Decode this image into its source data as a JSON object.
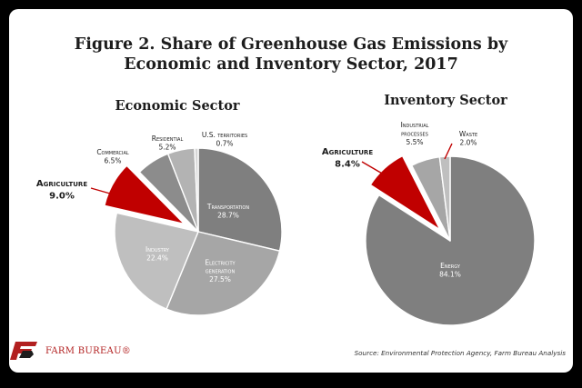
{
  "figure_title_line1": "Figure 2. Share of Greenhouse Gas Emissions by",
  "figure_title_line2": "Economic and Inventory Sector, 2017",
  "logo_text": "FARM BUREAU®",
  "source": "Source: Environmental Protection Agency, Farm Bureau Analysis",
  "colors": {
    "highlight": "#c00000",
    "background": "#ffffff",
    "text": "#1d1d1d"
  },
  "chart_data": [
    {
      "type": "pie",
      "title": "Economic Sector",
      "labels": [
        "Transportation",
        "Electricity generation",
        "Industry",
        "Agriculture",
        "Commercial",
        "Residential",
        "U.S. territories"
      ],
      "display_labels": [
        "Transportation",
        "Electricity generation",
        "Industry",
        "Agriculture",
        "Commercial",
        "Residential",
        "U.S. territories"
      ],
      "values": [
        28.7,
        27.5,
        22.4,
        9.0,
        6.5,
        5.2,
        0.7
      ],
      "value_labels": [
        "28.7%",
        "27.5%",
        "22.4%",
        "9.0%",
        "6.5%",
        "5.2%",
        "0.7%"
      ],
      "colors": [
        "#7f7f7f",
        "#a6a6a6",
        "#bfbfbf",
        "#c00000",
        "#8c8c8c",
        "#b3b3b3",
        "#d6d6d6"
      ],
      "exploded": "Agriculture",
      "start_angle_deg": 0,
      "direction": "clockwise"
    },
    {
      "type": "pie",
      "title": "Inventory Sector",
      "labels": [
        "Energy",
        "Agriculture",
        "Industrial processes",
        "Waste"
      ],
      "display_labels": [
        "Energy",
        "Agriculture",
        "Industrial processes",
        "Waste"
      ],
      "values": [
        84.1,
        8.4,
        5.5,
        2.0
      ],
      "value_labels": [
        "84.1%",
        "8.4%",
        "5.5%",
        "2.0%"
      ],
      "colors": [
        "#7f7f7f",
        "#c00000",
        "#a6a6a6",
        "#bfbfbf"
      ],
      "exploded": "Agriculture",
      "start_angle_deg": 0,
      "direction": "clockwise"
    }
  ]
}
